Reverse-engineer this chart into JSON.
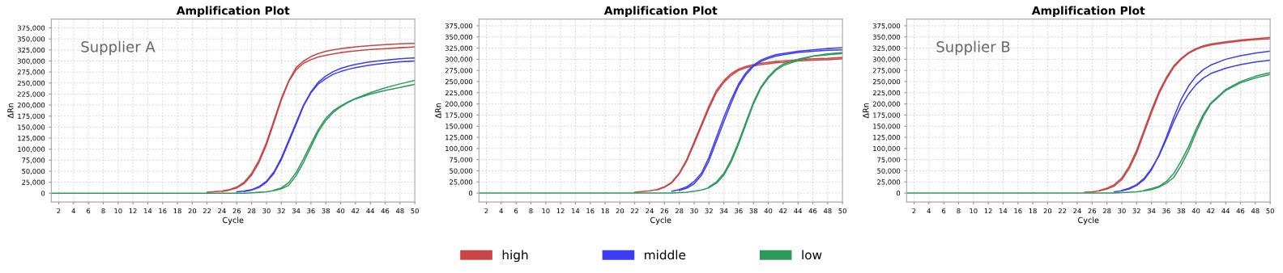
{
  "chart_data": [
    {
      "type": "line",
      "title": "Amplification Plot",
      "xlabel": "Cycle",
      "ylabel": "ΔRn",
      "annotations": [
        "Supplier A"
      ],
      "grid": true,
      "legend": "bottom",
      "marker": "none",
      "line_style": "solid",
      "xlim": [
        1,
        50
      ],
      "xticks": [
        2,
        4,
        6,
        8,
        10,
        12,
        14,
        16,
        18,
        20,
        22,
        24,
        26,
        28,
        30,
        32,
        34,
        36,
        38,
        40,
        42,
        44,
        46,
        48,
        50
      ],
      "ylim": [
        -20000,
        395000
      ],
      "yticks": [
        {
          "value": 0,
          "label": "0"
        },
        {
          "value": 25000,
          "label": "25,000"
        },
        {
          "value": 50000,
          "label": "50,000"
        },
        {
          "value": 75000,
          "label": "75,000"
        },
        {
          "value": 100000,
          "label": "100,000"
        },
        {
          "value": 125000,
          "label": "125,000"
        },
        {
          "value": 150000,
          "label": "150,000"
        },
        {
          "value": 175000,
          "label": "175,000"
        },
        {
          "value": 200000,
          "label": "200,000"
        },
        {
          "value": 225000,
          "label": "225,000"
        },
        {
          "value": 250000,
          "label": "250,000"
        },
        {
          "value": 275000,
          "label": "275,000"
        },
        {
          "value": 300000,
          "label": "300,000"
        },
        {
          "value": 325000,
          "label": "325,000"
        },
        {
          "value": 350000,
          "label": "350,000"
        },
        {
          "value": 375000,
          "label": "375,000"
        }
      ],
      "x": [
        1,
        16,
        20,
        22,
        24,
        25,
        26,
        27,
        28,
        29,
        30,
        31,
        32,
        33,
        34,
        35,
        36,
        37,
        38,
        39,
        40,
        41,
        42,
        44,
        46,
        48,
        50
      ],
      "series": [
        {
          "name": "high",
          "color": "#c84545",
          "values": [
            null,
            null,
            null,
            2000,
            5000,
            8000,
            14000,
            25000,
            45000,
            75000,
            115000,
            165000,
            215000,
            255000,
            285000,
            300000,
            310000,
            317000,
            322000,
            325000,
            328000,
            330000,
            332000,
            335000,
            337000,
            339000,
            340000
          ]
        },
        {
          "color": "#c84545",
          "values": [
            null,
            null,
            null,
            null,
            4000,
            7000,
            12000,
            22000,
            41000,
            70000,
            110000,
            160000,
            211000,
            253000,
            280000,
            295000,
            303000,
            309000,
            313000,
            316000,
            319000,
            321000,
            323000,
            326000,
            328000,
            330000,
            332000
          ]
        },
        {
          "name": "middle",
          "color": "#3c3cf0",
          "values": [
            null,
            null,
            null,
            null,
            null,
            null,
            3000,
            5000,
            8000,
            15000,
            27000,
            48000,
            80000,
            120000,
            160000,
            200000,
            230000,
            252000,
            266000,
            276000,
            283000,
            288000,
            292000,
            298000,
            302000,
            305000,
            307000
          ]
        },
        {
          "color": "#3c3cf0",
          "values": [
            null,
            null,
            null,
            null,
            null,
            null,
            null,
            4000,
            7000,
            13000,
            25000,
            45000,
            76000,
            116000,
            156000,
            198000,
            228000,
            248000,
            260000,
            270000,
            276000,
            281000,
            285000,
            291000,
            295000,
            298000,
            300000
          ]
        },
        {
          "name": "low",
          "color": "#2e9a5a",
          "values": [
            null,
            null,
            null,
            null,
            null,
            null,
            null,
            null,
            null,
            null,
            null,
            7000,
            12000,
            24000,
            47000,
            78000,
            112000,
            145000,
            170000,
            187000,
            198000,
            207000,
            215000,
            228000,
            239000,
            248000,
            256000
          ]
        },
        {
          "color": "#2e9a5a",
          "values": [
            0,
            0,
            0,
            0,
            0,
            0,
            0,
            0,
            1000,
            2000,
            3000,
            6000,
            10000,
            18000,
            40000,
            70000,
            105000,
            140000,
            165000,
            183000,
            196000,
            206000,
            214000,
            225000,
            233000,
            240000,
            247000
          ]
        }
      ]
    },
    {
      "type": "line",
      "title": "Amplification Plot",
      "xlabel": "Cycle",
      "ylabel": "ΔRn",
      "grid": true,
      "legend": "bottom",
      "marker": "none",
      "line_style": "solid",
      "xlim": [
        1,
        50
      ],
      "xticks": [
        2,
        4,
        6,
        8,
        10,
        12,
        14,
        16,
        18,
        20,
        22,
        24,
        26,
        28,
        30,
        32,
        34,
        36,
        38,
        40,
        42,
        44,
        46,
        48,
        50
      ],
      "ylim": [
        -20000,
        390000
      ],
      "yticks": [
        {
          "value": 0,
          "label": "0"
        },
        {
          "value": 25000,
          "label": "25,000"
        },
        {
          "value": 50000,
          "label": "50,000"
        },
        {
          "value": 75000,
          "label": "75,000"
        },
        {
          "value": 100000,
          "label": "100,000"
        },
        {
          "value": 125000,
          "label": "125,000"
        },
        {
          "value": 150000,
          "label": "150,000"
        },
        {
          "value": 175000,
          "label": "175,000"
        },
        {
          "value": 200000,
          "label": "200,000"
        },
        {
          "value": 225000,
          "label": "225,000"
        },
        {
          "value": 250000,
          "label": "250,000"
        },
        {
          "value": 275000,
          "label": "275,000"
        },
        {
          "value": 300000,
          "label": "300,000"
        },
        {
          "value": 325000,
          "label": "325,000"
        },
        {
          "value": 350000,
          "label": "350,000"
        },
        {
          "value": 375000,
          "label": "375,000"
        }
      ],
      "x": [
        1,
        16,
        20,
        22,
        24,
        25,
        26,
        27,
        28,
        29,
        30,
        31,
        32,
        33,
        34,
        35,
        36,
        37,
        38,
        39,
        40,
        41,
        42,
        44,
        46,
        48,
        50
      ],
      "series": [
        {
          "name": "high",
          "color": "#c84545",
          "values": [
            null,
            null,
            null,
            2000,
            5000,
            8000,
            14000,
            25000,
            45000,
            75000,
            115000,
            155000,
            195000,
            230000,
            252000,
            268000,
            278000,
            284000,
            288000,
            291000,
            293000,
            295000,
            296000,
            299000,
            301000,
            302000,
            304000
          ]
        },
        {
          "color": "#c84545",
          "values": [
            null,
            null,
            null,
            null,
            null,
            7000,
            13000,
            23000,
            43000,
            72000,
            110000,
            150000,
            190000,
            225000,
            248000,
            264000,
            275000,
            281000,
            285000,
            288000,
            290000,
            292000,
            293000,
            296000,
            298000,
            299000,
            301000
          ]
        },
        {
          "name": "middle",
          "color": "#3c3cf0",
          "values": [
            null,
            null,
            null,
            null,
            null,
            null,
            null,
            4000,
            8000,
            14000,
            26000,
            45000,
            80000,
            125000,
            170000,
            210000,
            245000,
            270000,
            287000,
            298000,
            305000,
            310000,
            313000,
            318000,
            321000,
            324000,
            326000
          ]
        },
        {
          "color": "#3c3cf0",
          "values": [
            null,
            null,
            null,
            null,
            null,
            null,
            null,
            null,
            6000,
            11000,
            21000,
            40000,
            72000,
            116000,
            160000,
            202000,
            240000,
            266000,
            284000,
            295000,
            302000,
            307000,
            310000,
            315000,
            318000,
            320000,
            321000
          ]
        },
        {
          "name": "low",
          "color": "#2e9a5a",
          "values": [
            null,
            null,
            null,
            null,
            null,
            null,
            null,
            null,
            null,
            null,
            null,
            null,
            14000,
            25000,
            44000,
            75000,
            115000,
            160000,
            204000,
            238000,
            261000,
            278000,
            289000,
            300000,
            307000,
            310000,
            313000
          ]
        },
        {
          "color": "#2e9a5a",
          "values": [
            0,
            0,
            0,
            0,
            0,
            0,
            0,
            0,
            1000,
            2000,
            4000,
            7000,
            12000,
            22000,
            40000,
            70000,
            110000,
            155000,
            200000,
            235000,
            258000,
            275000,
            286000,
            297000,
            307000,
            312000,
            315000
          ]
        }
      ]
    },
    {
      "type": "line",
      "title": "Amplification Plot",
      "xlabel": "Cycle",
      "ylabel": "ΔRn",
      "annotations": [
        "Supplier B"
      ],
      "grid": true,
      "legend": "bottom",
      "marker": "none",
      "line_style": "solid",
      "xlim": [
        1,
        50
      ],
      "xticks": [
        2,
        4,
        6,
        8,
        10,
        12,
        14,
        16,
        18,
        20,
        22,
        24,
        26,
        28,
        30,
        32,
        34,
        36,
        38,
        40,
        42,
        44,
        46,
        48,
        50
      ],
      "ylim": [
        -20000,
        390000
      ],
      "yticks": [
        {
          "value": 0,
          "label": "0"
        },
        {
          "value": 25000,
          "label": "25,000"
        },
        {
          "value": 50000,
          "label": "50,000"
        },
        {
          "value": 75000,
          "label": "75,000"
        },
        {
          "value": 100000,
          "label": "100,000"
        },
        {
          "value": 125000,
          "label": "125,000"
        },
        {
          "value": 150000,
          "label": "150,000"
        },
        {
          "value": 175000,
          "label": "175,000"
        },
        {
          "value": 200000,
          "label": "200,000"
        },
        {
          "value": 225000,
          "label": "225,000"
        },
        {
          "value": 250000,
          "label": "250,000"
        },
        {
          "value": 275000,
          "label": "275,000"
        },
        {
          "value": 300000,
          "label": "300,000"
        },
        {
          "value": 325000,
          "label": "325,000"
        },
        {
          "value": 350000,
          "label": "350,000"
        },
        {
          "value": 375000,
          "label": "375,000"
        }
      ],
      "x": [
        1,
        16,
        20,
        22,
        24,
        25,
        26,
        27,
        28,
        29,
        30,
        31,
        32,
        33,
        34,
        35,
        36,
        37,
        38,
        39,
        40,
        41,
        42,
        44,
        46,
        48,
        50
      ],
      "series": [
        {
          "name": "high",
          "color": "#c84545",
          "values": [
            null,
            null,
            null,
            null,
            null,
            2000,
            3000,
            5000,
            9000,
            16000,
            30000,
            55000,
            90000,
            135000,
            180000,
            222000,
            255000,
            282000,
            300000,
            313000,
            322000,
            328000,
            332000,
            337000,
            341000,
            344000,
            346000
          ]
        },
        {
          "color": "#c84545",
          "values": [
            null,
            null,
            null,
            null,
            null,
            null,
            null,
            6000,
            11000,
            19000,
            34000,
            60000,
            96000,
            141000,
            186000,
            227000,
            259000,
            285000,
            302000,
            315000,
            324000,
            330000,
            334000,
            339000,
            343000,
            346000,
            349000
          ]
        },
        {
          "name": "middle",
          "color": "#3c3cf0",
          "values": [
            null,
            null,
            null,
            null,
            null,
            null,
            null,
            null,
            null,
            3000,
            5000,
            9000,
            17000,
            30000,
            52000,
            85000,
            125000,
            170000,
            210000,
            240000,
            262000,
            277000,
            287000,
            300000,
            308000,
            314000,
            318000
          ]
        },
        {
          "color": "#3c3cf0",
          "values": [
            null,
            null,
            null,
            null,
            null,
            null,
            null,
            null,
            null,
            null,
            6000,
            11000,
            19000,
            33000,
            55000,
            83000,
            120000,
            160000,
            195000,
            222000,
            243000,
            258000,
            268000,
            280000,
            288000,
            294000,
            298000
          ]
        },
        {
          "name": "low",
          "color": "#2e9a5a",
          "values": [
            null,
            null,
            null,
            null,
            null,
            null,
            null,
            null,
            null,
            null,
            null,
            null,
            null,
            6000,
            10000,
            15000,
            26000,
            44000,
            72000,
            104000,
            143000,
            177000,
            202000,
            232000,
            250000,
            262000,
            270000
          ]
        },
        {
          "color": "#2e9a5a",
          "values": [
            0,
            0,
            0,
            0,
            0,
            0,
            0,
            0,
            0,
            0,
            1000,
            2000,
            3000,
            5000,
            8000,
            13000,
            22000,
            35000,
            62000,
            95000,
            135000,
            172000,
            200000,
            230000,
            247000,
            258000,
            266000
          ]
        }
      ]
    }
  ]
}
